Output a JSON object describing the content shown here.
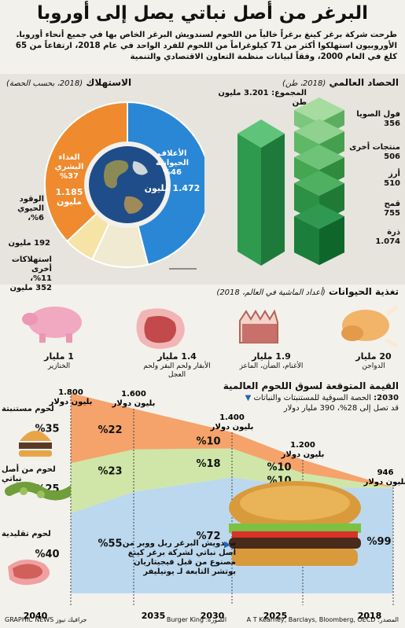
{
  "title": "البرغر من أصل نباتي يصل إلى أوروبا",
  "intro": "طرحت شركة برغر كينغ برغراً خالياً من اللحوم لسندويش البرغر الخاص بها في جميع أنحاء أوروبا. الأوروبيون استهلكوا أكثر من 71 كيلوغراماً من اللحوم للفرد الواحد في عام 2018، ارتفاعاً من 65 كلغ في العام 2000، وفقاً لبيانات منظمة التعاون الاقتصادي والتنمية",
  "harvest": {
    "heading": "الحصاد العالمي",
    "subheading": "(2018، طن)",
    "total_label": "المجموع: 3.201 مليون طن",
    "crops": [
      {
        "name": "فول الصويا",
        "value": "356"
      },
      {
        "name": "منتجات أخرى",
        "value": "506"
      },
      {
        "name": "أرز",
        "value": "510"
      },
      {
        "name": "قمح",
        "value": "755"
      },
      {
        "name": "ذرة",
        "value": "1.074"
      }
    ]
  },
  "consumption": {
    "heading": "الاستهلاك",
    "subheading": "(2018، بحسب الحصة)",
    "slices": [
      {
        "name": "الأعلاف الحيوانية",
        "pct_label": "%46",
        "amount": "1.472 مليون",
        "color": "#2a87d6"
      },
      {
        "name": "الغذاء البشري",
        "pct_label": "%37",
        "amount": "1.185 مليون",
        "color": "#ef8a2e"
      },
      {
        "name": "الوقود الحيوي",
        "pct_label": "%6،",
        "amount": "192 مليون",
        "color": "#f6e3a6"
      },
      {
        "name": "استهلاكات أخرى",
        "pct_label": "%11،",
        "amount": "352 مليون",
        "color": "#f1ead2"
      }
    ]
  },
  "feeding": {
    "heading": "تغذية الحيوانات",
    "subheading": "(أعداد الماشية في العالم، 2018)",
    "animals": [
      {
        "icon": "chicken-icon",
        "count": "20 مليار",
        "name": "الدواجن"
      },
      {
        "icon": "sheep-icon",
        "count": "1.9 مليار",
        "name": "الأغنام، الضأن، الماعز"
      },
      {
        "icon": "beef-icon",
        "count": "1.4 مليار",
        "name": "الأبقار ولحم البقر ولحم العجل"
      },
      {
        "icon": "pig-icon",
        "count": "1 مليار",
        "name": "الخنازير"
      }
    ]
  },
  "market": {
    "heading": "القيمة المتوقعة لسوق اللحوم العالمية",
    "note_year": "2030:",
    "note_text": "الحصة السوقية للمستنبتات والنباتات",
    "note_line2": "قد تصل إلى 28%، 390 مليار دولار",
    "category_labels": [
      "لحوم مستنبتة",
      "لحوم من أصل نباتي",
      "لحوم تقليدية"
    ],
    "burger_caption": "سندويش البرغر ربل ووبر من أصل نباتي لشركة برغر كينغ مصنوع من قبل فيجيتاريان بوتشر التابعة لـ يونيليفر",
    "totals": [
      {
        "year": "2018",
        "value": "946 بليون دولار"
      },
      {
        "year": "2025",
        "value": "1.200 بليون دولار"
      },
      {
        "year": "2030",
        "value": "1.400 بليون دولار"
      },
      {
        "year": "2035",
        "value": "1.600 بليون دولار"
      },
      {
        "year": "2040",
        "value": "1.800 بليون دولار"
      }
    ]
  },
  "chart_data": {
    "type": "area",
    "x": [
      "2040",
      "2035",
      "2030",
      "2025",
      "2018"
    ],
    "series": [
      {
        "name": "لحوم مستنبتة",
        "values": [
          35,
          22,
          10,
          10,
          0
        ],
        "labels": [
          "%35",
          "%22",
          "%10",
          "%10",
          ""
        ],
        "color": "#f5a36a"
      },
      {
        "name": "لحوم من أصل نباتي",
        "values": [
          25,
          23,
          18,
          10,
          1
        ],
        "labels": [
          "%25",
          "%23",
          "%18",
          "%10",
          ""
        ],
        "color": "#cfe6a8"
      },
      {
        "name": "لحوم تقليدية",
        "values": [
          40,
          55,
          72,
          80,
          99
        ],
        "labels": [
          "%40",
          "%55",
          "%72",
          "",
          "%99"
        ],
        "color": "#bcd8ee"
      }
    ],
    "totals_usd_bn": [
      1800,
      1600,
      1400,
      1200,
      946
    ]
  },
  "footer": {
    "source": "المصدر: A T Kearney, Barclays, Bloomberg, OECD",
    "photo": "الصورة: Burger King",
    "credit": "GRAPHIC NEWS جرافيك نيوز"
  }
}
